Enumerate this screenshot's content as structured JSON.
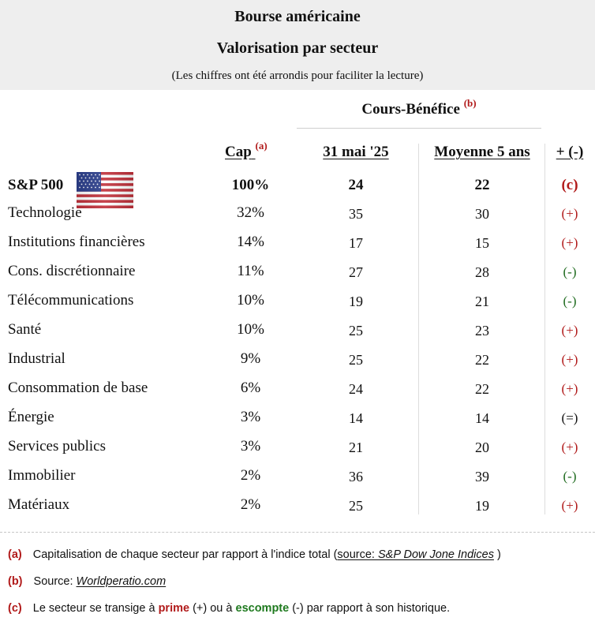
{
  "header": {
    "title_line1": "Bourse américaine",
    "title_line2": "Valorisation par secteur",
    "subtitle": "(Les chiffres ont été arrondis pour faciliter la lecture)"
  },
  "columns": {
    "group_title": "Cours-Bénéfice",
    "group_note": "(b)",
    "cap": "Cap",
    "cap_note": "(a)",
    "pe_current": "31 mai '25",
    "pe_avg": "Moyenne 5 ans",
    "signal": "+ (-)"
  },
  "index_row": {
    "label": "S&P 500",
    "flag_icon": "us-flag-icon",
    "cap": "100%",
    "pe_current": "24",
    "pe_avg": "22",
    "signal": "(c)"
  },
  "sectors": [
    {
      "name": "Technologie",
      "cap": "32%",
      "pe_current": "35",
      "pe_avg": "30",
      "signal": "(+)"
    },
    {
      "name": "Institutions financières",
      "cap": "14%",
      "pe_current": "17",
      "pe_avg": "15",
      "signal": "(+)"
    },
    {
      "name": "Cons. discrétionnaire",
      "cap": "11%",
      "pe_current": "27",
      "pe_avg": "28",
      "signal": "(-)"
    },
    {
      "name": "Télécommunications",
      "cap": "10%",
      "pe_current": "19",
      "pe_avg": "21",
      "signal": "(-)"
    },
    {
      "name": "Santé",
      "cap": "10%",
      "pe_current": "25",
      "pe_avg": "23",
      "signal": "(+)"
    },
    {
      "name": "Industrial",
      "cap": "9%",
      "pe_current": "25",
      "pe_avg": "22",
      "signal": "(+)"
    },
    {
      "name": "Consommation de base",
      "cap": "6%",
      "pe_current": "24",
      "pe_avg": "22",
      "signal": "(+)"
    },
    {
      "name": "Énergie",
      "cap": "3%",
      "pe_current": "14",
      "pe_avg": "14",
      "signal": "(=)"
    },
    {
      "name": "Services publics",
      "cap": "3%",
      "pe_current": "21",
      "pe_avg": "20",
      "signal": "(+)"
    },
    {
      "name": "Immobilier",
      "cap": "2%",
      "pe_current": "36",
      "pe_avg": "39",
      "signal": "(-)"
    },
    {
      "name": "Matériaux",
      "cap": "2%",
      "pe_current": "25",
      "pe_avg": "19",
      "signal": "(+)"
    }
  ],
  "notes": {
    "a": {
      "tag": "(a)",
      "text": "Capitalisation de chaque secteur par rapport à l'indice total (",
      "source_label": "source: ",
      "source_name": "S&P Dow Jone Indices",
      "close": " )"
    },
    "b": {
      "tag": "(b)",
      "text": "Source: ",
      "source_name": "Worldperatio.com"
    },
    "c": {
      "tag": "(c)",
      "text_start": "Le secteur se transige à ",
      "prime": "prime",
      "text_mid": " (+) ou à ",
      "escompte": "escompte",
      "text_end": " (-) par  rapport à son historique."
    }
  },
  "colors": {
    "accent_red": "#b11a1a",
    "accent_green": "#1f6b1f",
    "header_bg": "#eeeeee"
  }
}
